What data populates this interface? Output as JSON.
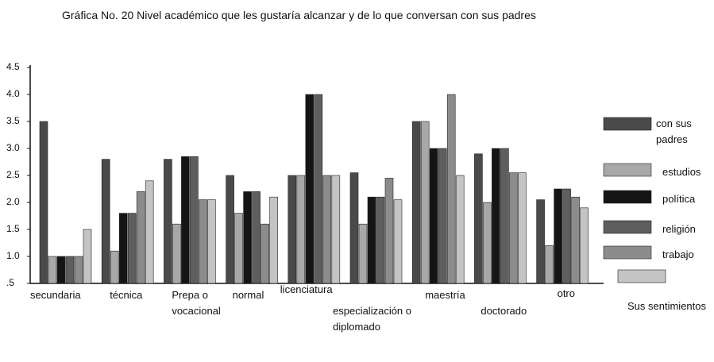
{
  "chart_data": {
    "type": "bar",
    "title": "Gráfica No. 20 Nivel académico que  les gustaría alcanzar y de lo que conversan  con sus padres",
    "categories": [
      "secundaria",
      "técnica",
      "Prepa o vocacional",
      "normal",
      "licenciatura",
      "especialización o diplomado",
      "maestría",
      "doctorado",
      "otro"
    ],
    "series": [
      {
        "name": "con sus padres",
        "color": "#4a4a4a",
        "values": [
          3.5,
          2.8,
          2.8,
          2.5,
          2.5,
          2.55,
          3.5,
          2.9,
          2.05
        ]
      },
      {
        "name": "estudios",
        "color": "#a8a8a8",
        "values": [
          1.0,
          1.1,
          1.6,
          1.8,
          2.5,
          1.6,
          3.5,
          2.0,
          1.2
        ]
      },
      {
        "name": "política",
        "color": "#151515",
        "values": [
          1.0,
          1.8,
          2.85,
          2.2,
          4.0,
          2.1,
          3.0,
          3.0,
          2.25
        ]
      },
      {
        "name": "religión",
        "color": "#5e5e5e",
        "values": [
          1.0,
          1.8,
          2.85,
          2.2,
          4.0,
          2.1,
          3.0,
          3.0,
          2.25
        ]
      },
      {
        "name": "trabajo",
        "color": "#8c8c8c",
        "values": [
          1.0,
          2.2,
          2.05,
          1.6,
          2.5,
          2.45,
          4.0,
          2.55,
          2.1
        ]
      },
      {
        "name": "Sus sentimientos",
        "color": "#c4c4c4",
        "values": [
          1.5,
          2.4,
          2.05,
          2.1,
          2.5,
          2.05,
          2.5,
          2.55,
          1.9
        ]
      }
    ],
    "ylim": [
      0.5,
      4.5
    ],
    "yticks": [
      {
        "value": 0.5,
        "label": ".5"
      },
      {
        "value": 1,
        "label": "1.0"
      },
      1.5,
      {
        "value": 2,
        "label": "2.0"
      },
      2.5,
      {
        "value": 3,
        "label": "3.0"
      },
      3.5,
      {
        "value": 4,
        "label": "4.0"
      },
      4.5
    ],
    "grid": false
  }
}
